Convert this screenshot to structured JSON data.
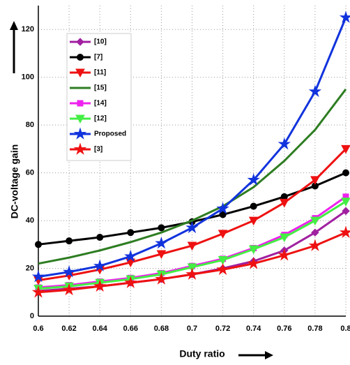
{
  "chart_data": {
    "type": "line",
    "x_label": "Duty ratio",
    "y_label": "DC-voltage gain",
    "x": [
      0.6,
      0.62,
      0.64,
      0.66,
      0.68,
      0.7,
      0.72,
      0.74,
      0.76,
      0.78,
      0.8
    ],
    "xlim": [
      0.6,
      0.8
    ],
    "xticks": [
      0.6,
      0.62,
      0.64,
      0.66,
      0.68,
      0.7,
      0.72,
      0.74,
      0.76,
      0.78,
      0.8
    ],
    "ylim": [
      0,
      130
    ],
    "yticks": [
      0,
      20,
      40,
      60,
      80,
      100,
      120
    ],
    "grid": true,
    "series": [
      {
        "name": "[10]",
        "color": "#a020a0",
        "marker": "diamond",
        "values": [
          10.5,
          11.5,
          12.5,
          14,
          15.5,
          17.5,
          20,
          23,
          27.5,
          35,
          44
        ]
      },
      {
        "name": "[7]",
        "color": "#000000",
        "marker": "circle",
        "values": [
          30,
          31.5,
          33,
          35,
          37,
          39.5,
          42.5,
          46,
          50,
          54.5,
          60
        ]
      },
      {
        "name": "[11]",
        "color": "#ee1111",
        "marker": "triangle",
        "values": [
          15,
          17,
          19.5,
          22.5,
          26,
          29.5,
          34.5,
          40,
          47.5,
          57,
          70
        ]
      },
      {
        "name": "[15]",
        "color": "#2e7d22",
        "marker": "none",
        "values": [
          22,
          24.5,
          27.5,
          31,
          35,
          40,
          46,
          54,
          65,
          78,
          95
        ]
      },
      {
        "name": "[14]",
        "color": "#ee22ee",
        "marker": "square",
        "values": [
          12,
          13,
          14.5,
          16,
          18,
          21,
          24,
          28.5,
          34,
          41,
          50
        ]
      },
      {
        "name": "[12]",
        "color": "#44ee44",
        "marker": "triangle",
        "values": [
          11.5,
          12.5,
          14,
          15.5,
          17.5,
          20.5,
          23.5,
          28,
          33,
          40,
          48
        ]
      },
      {
        "name": "Proposed",
        "color": "#1133dd",
        "marker": "star",
        "values": [
          16.5,
          18.5,
          21,
          25,
          30.5,
          37,
          45,
          57,
          72,
          94,
          125
        ]
      },
      {
        "name": "[3]",
        "color": "#ee1111",
        "marker": "star",
        "values": [
          10,
          11,
          12.5,
          14,
          15.5,
          17.5,
          19.5,
          22,
          25.5,
          29.5,
          35
        ]
      }
    ]
  }
}
